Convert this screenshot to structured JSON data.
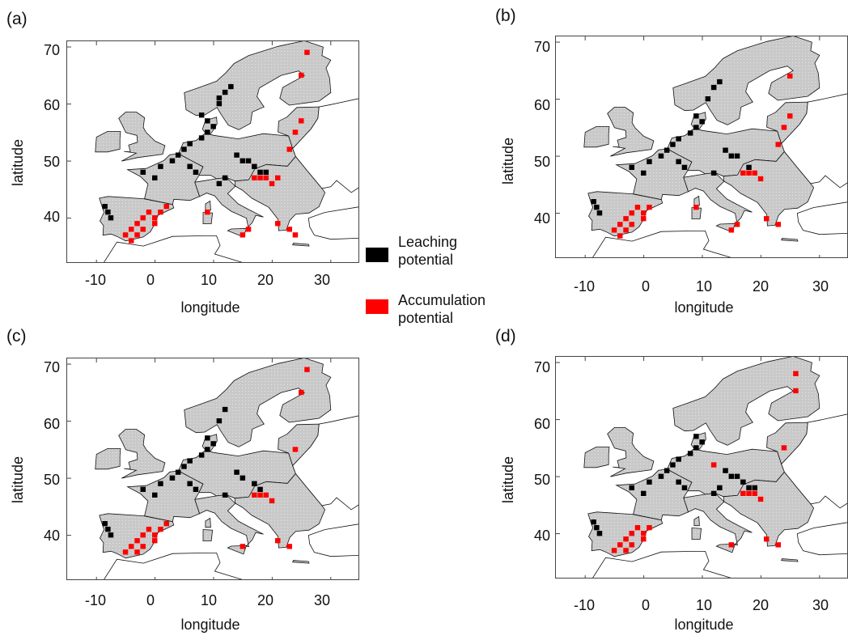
{
  "colors": {
    "land": "#c9c9c9",
    "border": "#111111",
    "leaching": "#000000",
    "accumulation": "#ff0000",
    "grid_dot": "#e6e6e6"
  },
  "legend": {
    "leaching_label_line1": "Leaching",
    "leaching_label_line2": "potential",
    "accumulation_label_line1": "Accumulation",
    "accumulation_label_line2": "potential"
  },
  "panels": [
    {
      "id": "a",
      "label": "(a)",
      "xlabel": "longitude",
      "ylabel": "latitude",
      "xticks": [
        "-10",
        "0",
        "10",
        "20",
        "30"
      ],
      "yticks": [
        "70",
        "60",
        "50",
        "40"
      ]
    },
    {
      "id": "b",
      "label": "(b)",
      "xlabel": "longitude",
      "ylabel": "latitude",
      "xticks": [
        "-10",
        "0",
        "10",
        "20",
        "30"
      ],
      "yticks": [
        "70",
        "60",
        "50",
        "40"
      ]
    },
    {
      "id": "c",
      "label": "(c)",
      "xlabel": "longitude",
      "ylabel": "latitude",
      "xticks": [
        "-10",
        "0",
        "10",
        "20",
        "30"
      ],
      "yticks": [
        "70",
        "60",
        "50",
        "40"
      ]
    },
    {
      "id": "d",
      "label": "(d)",
      "xlabel": "longitude",
      "ylabel": "latitude",
      "xticks": [
        "-10",
        "0",
        "10",
        "20",
        "30"
      ],
      "yticks": [
        "70",
        "60",
        "50",
        "40"
      ]
    }
  ],
  "map_extent": {
    "lon": [
      -15,
      35
    ],
    "lat": [
      32,
      71
    ]
  },
  "hotspots": {
    "a": {
      "leaching": [
        [
          -8.5,
          42
        ],
        [
          -8,
          41
        ],
        [
          -7.5,
          40
        ],
        [
          -2,
          48
        ],
        [
          0,
          47
        ],
        [
          1,
          49
        ],
        [
          3,
          50
        ],
        [
          4,
          51
        ],
        [
          5,
          52
        ],
        [
          6,
          53
        ],
        [
          8,
          54
        ],
        [
          9,
          55
        ],
        [
          10,
          56
        ],
        [
          9,
          57
        ],
        [
          8,
          58
        ],
        [
          11,
          60
        ],
        [
          11,
          61
        ],
        [
          12,
          62
        ],
        [
          13,
          63
        ],
        [
          6,
          49
        ],
        [
          7,
          48
        ],
        [
          14,
          51
        ],
        [
          15,
          50
        ],
        [
          16,
          50
        ],
        [
          17,
          49
        ],
        [
          18,
          48
        ],
        [
          19,
          48
        ],
        [
          12,
          47
        ],
        [
          11,
          46
        ]
      ],
      "accumulation": [
        [
          -4,
          38
        ],
        [
          -3,
          39
        ],
        [
          -2,
          40
        ],
        [
          -1,
          41
        ],
        [
          0,
          40
        ],
        [
          -3,
          37
        ],
        [
          -5,
          37
        ],
        [
          -4,
          36
        ],
        [
          -2,
          38
        ],
        [
          0,
          39
        ],
        [
          1,
          41
        ],
        [
          2,
          42
        ],
        [
          15,
          37
        ],
        [
          16,
          38
        ],
        [
          17,
          47
        ],
        [
          18,
          47
        ],
        [
          19,
          47
        ],
        [
          20,
          46
        ],
        [
          21,
          47
        ],
        [
          24,
          55
        ],
        [
          25,
          57
        ],
        [
          23,
          52
        ],
        [
          25,
          65
        ],
        [
          26,
          69
        ],
        [
          9,
          41
        ],
        [
          21,
          39
        ],
        [
          23,
          38
        ],
        [
          24,
          37
        ]
      ]
    },
    "b": {
      "leaching": [
        [
          -8.5,
          42
        ],
        [
          -8,
          41
        ],
        [
          -7.5,
          40
        ],
        [
          -2,
          48
        ],
        [
          0,
          47
        ],
        [
          1,
          49
        ],
        [
          3,
          50
        ],
        [
          4,
          51
        ],
        [
          5,
          52
        ],
        [
          6,
          53
        ],
        [
          8,
          54
        ],
        [
          9,
          55
        ],
        [
          10,
          56
        ],
        [
          9,
          57
        ],
        [
          11,
          60
        ],
        [
          12,
          62
        ],
        [
          13,
          63
        ],
        [
          6,
          49
        ],
        [
          7,
          48
        ],
        [
          14,
          51
        ],
        [
          15,
          50
        ],
        [
          16,
          50
        ],
        [
          18,
          48
        ],
        [
          12,
          47
        ]
      ],
      "accumulation": [
        [
          -4,
          38
        ],
        [
          -3,
          39
        ],
        [
          -2,
          40
        ],
        [
          -1,
          41
        ],
        [
          0,
          40
        ],
        [
          -3,
          37
        ],
        [
          -5,
          37
        ],
        [
          -4,
          36
        ],
        [
          -2,
          38
        ],
        [
          0,
          39
        ],
        [
          1,
          41
        ],
        [
          15,
          37
        ],
        [
          16,
          38
        ],
        [
          17,
          47
        ],
        [
          18,
          47
        ],
        [
          19,
          47
        ],
        [
          20,
          46
        ],
        [
          24,
          55
        ],
        [
          25,
          57
        ],
        [
          23,
          52
        ],
        [
          25,
          64
        ],
        [
          9,
          41
        ],
        [
          21,
          39
        ],
        [
          23,
          38
        ]
      ]
    },
    "c": {
      "leaching": [
        [
          -8.5,
          42
        ],
        [
          -8,
          41
        ],
        [
          -7.5,
          40
        ],
        [
          -2,
          48
        ],
        [
          0,
          47
        ],
        [
          1,
          49
        ],
        [
          3,
          50
        ],
        [
          4,
          51
        ],
        [
          5,
          52
        ],
        [
          6,
          53
        ],
        [
          8,
          54
        ],
        [
          9,
          55
        ],
        [
          10,
          56
        ],
        [
          9,
          57
        ],
        [
          11,
          60
        ],
        [
          12,
          62
        ],
        [
          6,
          49
        ],
        [
          7,
          48
        ],
        [
          14,
          51
        ],
        [
          15,
          50
        ],
        [
          17,
          49
        ],
        [
          18,
          48
        ],
        [
          12,
          47
        ]
      ],
      "accumulation": [
        [
          -4,
          38
        ],
        [
          -3,
          39
        ],
        [
          -2,
          40
        ],
        [
          -1,
          41
        ],
        [
          0,
          40
        ],
        [
          -3,
          37
        ],
        [
          -5,
          37
        ],
        [
          -2,
          38
        ],
        [
          0,
          39
        ],
        [
          1,
          41
        ],
        [
          2,
          42
        ],
        [
          17,
          47
        ],
        [
          18,
          47
        ],
        [
          19,
          47
        ],
        [
          20,
          46
        ],
        [
          24,
          55
        ],
        [
          25,
          65
        ],
        [
          26,
          69
        ],
        [
          15,
          38
        ],
        [
          21,
          39
        ],
        [
          23,
          38
        ]
      ]
    },
    "d": {
      "leaching": [
        [
          -8.5,
          42
        ],
        [
          -8,
          41
        ],
        [
          -7.5,
          40
        ],
        [
          -2,
          48
        ],
        [
          0,
          47
        ],
        [
          1,
          49
        ],
        [
          3,
          50
        ],
        [
          4,
          51
        ],
        [
          5,
          52
        ],
        [
          6,
          53
        ],
        [
          8,
          54
        ],
        [
          9,
          55
        ],
        [
          10,
          56
        ],
        [
          9,
          57
        ],
        [
          6,
          49
        ],
        [
          7,
          48
        ],
        [
          14,
          51
        ],
        [
          15,
          50
        ],
        [
          16,
          50
        ],
        [
          17,
          49
        ],
        [
          18,
          48
        ],
        [
          19,
          48
        ],
        [
          12,
          47
        ],
        [
          13,
          48
        ]
      ],
      "accumulation": [
        [
          -4,
          38
        ],
        [
          -3,
          39
        ],
        [
          -2,
          40
        ],
        [
          -1,
          41
        ],
        [
          0,
          40
        ],
        [
          -3,
          37
        ],
        [
          -5,
          37
        ],
        [
          -2,
          38
        ],
        [
          0,
          39
        ],
        [
          1,
          41
        ],
        [
          17,
          47
        ],
        [
          18,
          47
        ],
        [
          19,
          47
        ],
        [
          20,
          46
        ],
        [
          24,
          55
        ],
        [
          26,
          68
        ],
        [
          26,
          65
        ],
        [
          15,
          38
        ],
        [
          21,
          39
        ],
        [
          23,
          38
        ],
        [
          12,
          52
        ]
      ]
    }
  }
}
